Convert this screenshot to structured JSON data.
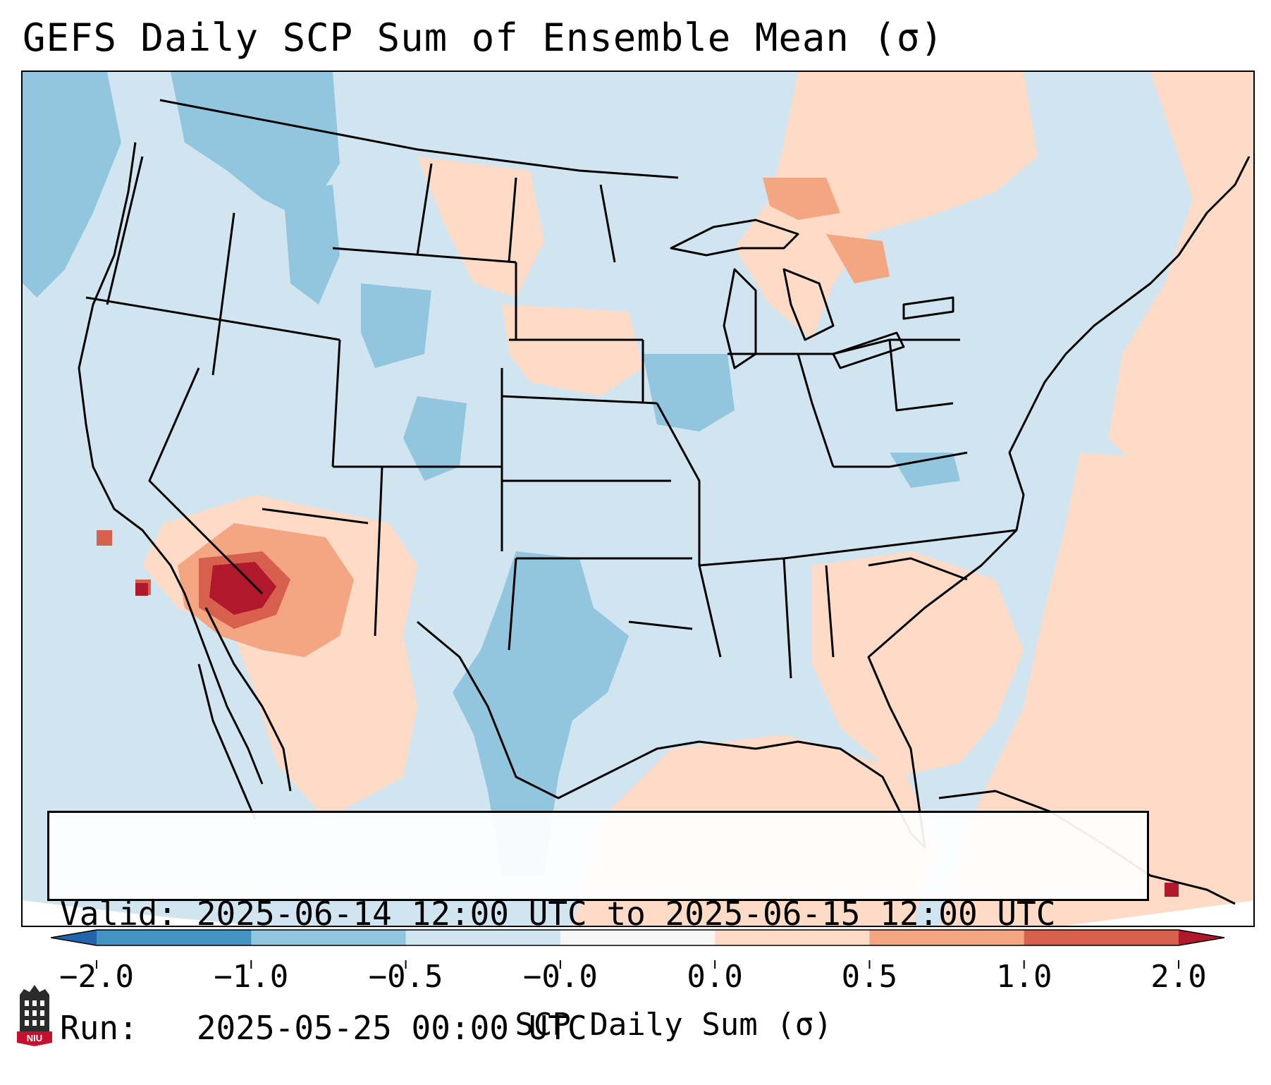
{
  "title": "GEFS Daily SCP Sum of Ensemble Mean (σ)",
  "map": {
    "region": "Contiguous United States",
    "background_color": "#d1e5f0",
    "anomaly_areas": [
      {
        "name": "southwest-strong-positive",
        "category": "1.0 to 2.0",
        "color": "#d6604d"
      },
      {
        "name": "southwest-peak",
        "category": "> 2.0",
        "color": "#b2182b"
      },
      {
        "name": "southwest-positive",
        "category": "0.5 to 1.0",
        "color": "#f4a582"
      },
      {
        "name": "southeast-weak-positive",
        "category": "0.0 to 0.5",
        "color": "#fddbc7"
      },
      {
        "name": "great-lakes-weak-positive",
        "category": "0.0 to 0.5",
        "color": "#fddbc7"
      },
      {
        "name": "atlantic-weak-positive",
        "category": "0.0 to 0.5",
        "color": "#fddbc7"
      },
      {
        "name": "texas-weak-negative",
        "category": "-1.0 to -0.5",
        "color": "#92c5de"
      },
      {
        "name": "northwest-weak-negative",
        "category": "-1.0 to -0.5",
        "color": "#92c5de"
      },
      {
        "name": "wyoming-weak-negative",
        "category": "-1.0 to -0.5",
        "color": "#92c5de"
      },
      {
        "name": "colorado-weak-negative",
        "category": "-1.0 to -0.5",
        "color": "#92c5de"
      }
    ]
  },
  "info": {
    "valid_line": "Valid: 2025-06-14 12:00 UTC to 2025-06-15 12:00 UTC",
    "run_line": "Run:   2025-05-25 00:00 UTC"
  },
  "colorbar": {
    "label": "SCP Daily Sum (σ)",
    "ticks": [
      "−2.0",
      "−1.0",
      "−0.5",
      "−0.0",
      "0.0",
      "0.5",
      "1.0",
      "2.0"
    ],
    "colors": [
      "#2166ac",
      "#4393c3",
      "#92c5de",
      "#d1e5f0",
      "#f7f7f7",
      "#fddbc7",
      "#f4a582",
      "#d6604d",
      "#b2182b"
    ],
    "extend": "both"
  },
  "logo": {
    "text": "NIU"
  }
}
